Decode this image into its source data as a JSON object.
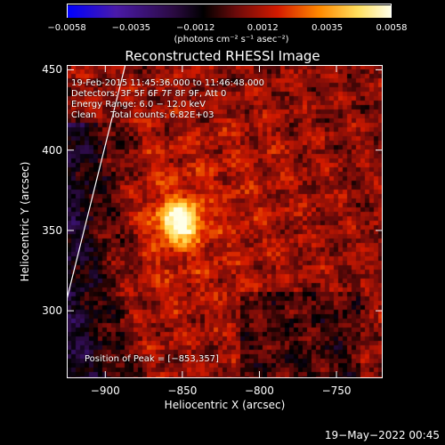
{
  "chart_data": {
    "type": "heatmap",
    "title": "Reconstructed RHESSI Image",
    "xlabel": "Heliocentric X (arcsec)",
    "ylabel": "Heliocentric Y (arcsec)",
    "xlim": [
      -925,
      -720
    ],
    "ylim": [
      258,
      453
    ],
    "x_ticks": [
      -900,
      -850,
      -800,
      -750
    ],
    "y_ticks": [
      300,
      350,
      400,
      450
    ],
    "colorbar": {
      "min": -0.0058,
      "max": 0.0058,
      "tick_values": [
        -0.0058,
        -0.0035,
        -0.0012,
        0.0012,
        0.0035,
        0.0058
      ],
      "tick_labels": [
        "−0.0058",
        "−0.0035",
        "−0.0012",
        "0.0012",
        "0.0035",
        "0.0058"
      ],
      "units": "(photons cm⁻² s⁻¹ asec⁻²)"
    },
    "peak": {
      "x": -853,
      "y": 357
    },
    "limb_line": [
      [
        -925,
        307
      ],
      [
        -887,
        453
      ]
    ],
    "annotations": {
      "time_range": "19-Feb-2015 11:45:36.000 to 11:46:48.000",
      "detectors": "Detectors: 3F 5F 6F 7F 8F 9F, Att 0",
      "energy_range": "Energy Range: 6.0 − 12.0 keV",
      "clean_counts": "Clean     Total counts: 6.82E+03",
      "peak_position": "Position of Peak = [−853,357]"
    }
  },
  "timestamp": "19−May−2022 00:45",
  "colors": {
    "background": "#000000",
    "colormap": [
      "#0000ff",
      "#4a1aa8",
      "#2a0a40",
      "#000000",
      "#6a0a0a",
      "#d41a00",
      "#ff8a00",
      "#ffe060",
      "#ffffe8"
    ]
  }
}
